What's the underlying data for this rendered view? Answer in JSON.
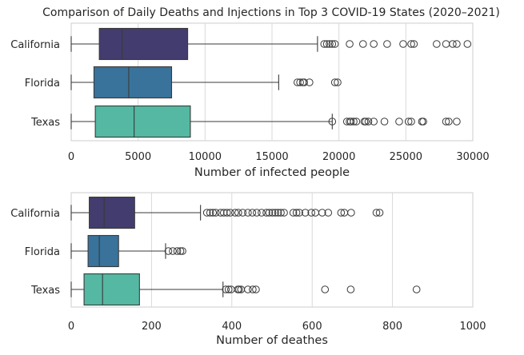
{
  "chart_data": [
    {
      "type": "box",
      "orientation": "horizontal",
      "title": "Comparison of Daily Deaths and Injections in Top 3 COVID-19 States (2020–2021)",
      "xlabel": "Number of infected people",
      "ylabel": "",
      "xlim": [
        0,
        30000
      ],
      "xticks": [
        0,
        5000,
        10000,
        15000,
        20000,
        25000,
        30000
      ],
      "grid": "vertical",
      "categories": [
        "California",
        "Florida",
        "Texas"
      ],
      "boxes": [
        {
          "category": "California",
          "color": "#433c6e",
          "whisker_low": 0,
          "q1": 2100,
          "median": 3800,
          "q3": 8700,
          "whisker_high": 18400,
          "outliers": [
            18900,
            19100,
            19300,
            19500,
            19700,
            20800,
            21800,
            22600,
            23600,
            24800,
            25400,
            25600,
            27300,
            28000,
            28500,
            28800,
            29600
          ]
        },
        {
          "category": "Florida",
          "color": "#39729a",
          "whisker_low": 0,
          "q1": 1700,
          "median": 4300,
          "q3": 7500,
          "whisker_high": 15500,
          "outliers": [
            16900,
            17100,
            17300,
            17400,
            17800,
            19700,
            19900
          ]
        },
        {
          "category": "Texas",
          "color": "#54b8a2",
          "whisker_low": 0,
          "q1": 1800,
          "median": 4700,
          "q3": 8900,
          "whisker_high": 19500,
          "outliers": [
            19500,
            20600,
            20800,
            20900,
            21100,
            21300,
            21900,
            22000,
            22200,
            22600,
            23400,
            24500,
            25200,
            25400,
            26200,
            26300,
            28000,
            28200,
            28800
          ]
        }
      ]
    },
    {
      "type": "box",
      "orientation": "horizontal",
      "title": "",
      "xlabel": "Number of deathes",
      "ylabel": "",
      "xlim": [
        0,
        1000
      ],
      "xticks": [
        0,
        200,
        400,
        600,
        800,
        1000
      ],
      "grid": "vertical",
      "categories": [
        "California",
        "Florida",
        "Texas"
      ],
      "boxes": [
        {
          "category": "California",
          "color": "#433c6e",
          "whisker_low": 0,
          "q1": 45,
          "median": 82,
          "q3": 158,
          "whisker_high": 322,
          "outliers": [
            338,
            346,
            353,
            360,
            372,
            380,
            388,
            396,
            408,
            416,
            427,
            440,
            451,
            462,
            474,
            486,
            493,
            501,
            508,
            515,
            522,
            530,
            553,
            561,
            568,
            583,
            598,
            608,
            625,
            640,
            672,
            680,
            697,
            760,
            768
          ]
        },
        {
          "category": "Florida",
          "color": "#39729a",
          "whisker_low": 0,
          "q1": 42,
          "median": 70,
          "q3": 118,
          "whisker_high": 235,
          "outliers": [
            242,
            253,
            264,
            272,
            277
          ]
        },
        {
          "category": "Texas",
          "color": "#54b8a2",
          "whisker_low": 0,
          "q1": 32,
          "median": 78,
          "q3": 170,
          "whisker_high": 378,
          "outliers": [
            385,
            392,
            398,
            415,
            418,
            423,
            440,
            452,
            460,
            632,
            696,
            860
          ]
        }
      ]
    }
  ]
}
